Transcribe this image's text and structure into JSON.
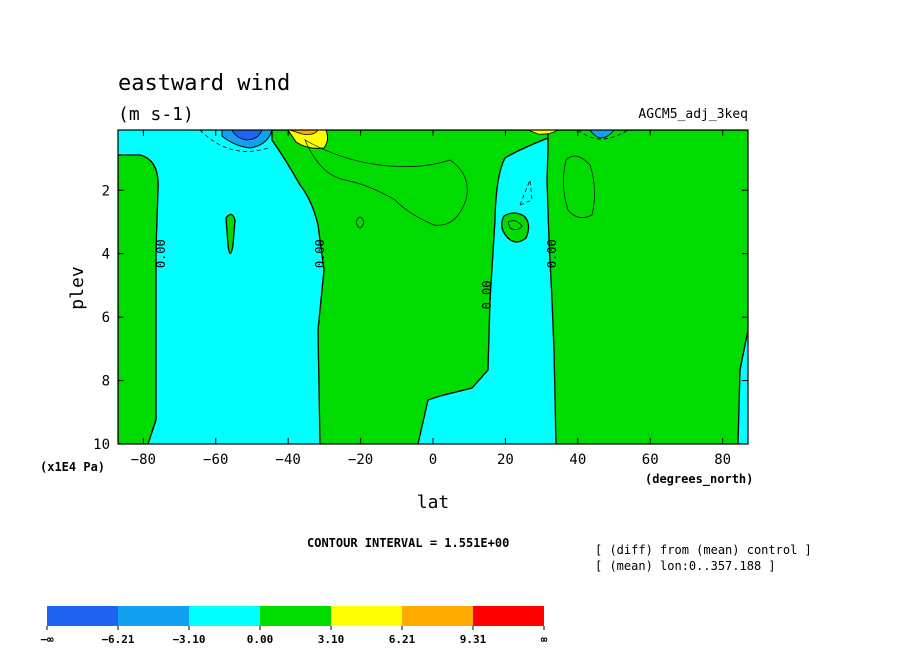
{
  "chart_data": {
    "type": "heatmap",
    "title": "eastward wind",
    "subtitle": "(m s-1)",
    "experiment": "AGCM5_adj_3keq",
    "xlabel": "lat",
    "ylabel": "plev",
    "x_units": "(degrees_north)",
    "y_units": "(x1E4 Pa)",
    "xlim": [
      -87,
      87
    ],
    "ylim": [
      10,
      0.1
    ],
    "x_ticks": [
      -80,
      -60,
      -40,
      -20,
      0,
      20,
      40,
      60,
      80
    ],
    "x_tick_labels": [
      "−80",
      "−60",
      "−40",
      "−20",
      "0",
      "20",
      "40",
      "60",
      "80"
    ],
    "y_ticks": [
      2,
      4,
      6,
      8,
      10
    ],
    "y_tick_labels": [
      "2",
      "4",
      "6",
      "8",
      "10"
    ],
    "contour_interval_text": "CONTOUR INTERVAL = 1.551E+00",
    "contour_labels": [
      {
        "lat": -75,
        "plev": 4.0,
        "text": "0.00"
      },
      {
        "lat": -31,
        "plev": 4.0,
        "text": "0.00"
      },
      {
        "lat": 15,
        "plev": 5.3,
        "text": "0.00"
      },
      {
        "lat": 33,
        "plev": 4.0,
        "text": "0.00"
      }
    ],
    "legend": {
      "levels": [
        "−∞",
        "−6.21",
        "−3.10",
        "0.00",
        "3.10",
        "6.21",
        "9.31",
        "∞"
      ],
      "colors": [
        "#1e64f0",
        "#14a0f0",
        "#00ffff",
        "#00dc00",
        "#ffff00",
        "#ffaa00",
        "#ff0000"
      ]
    },
    "notes": [
      "[ (diff) from (mean) control ]",
      "[ (mean) lon:0..357.188 ]"
    ],
    "grid": false
  }
}
